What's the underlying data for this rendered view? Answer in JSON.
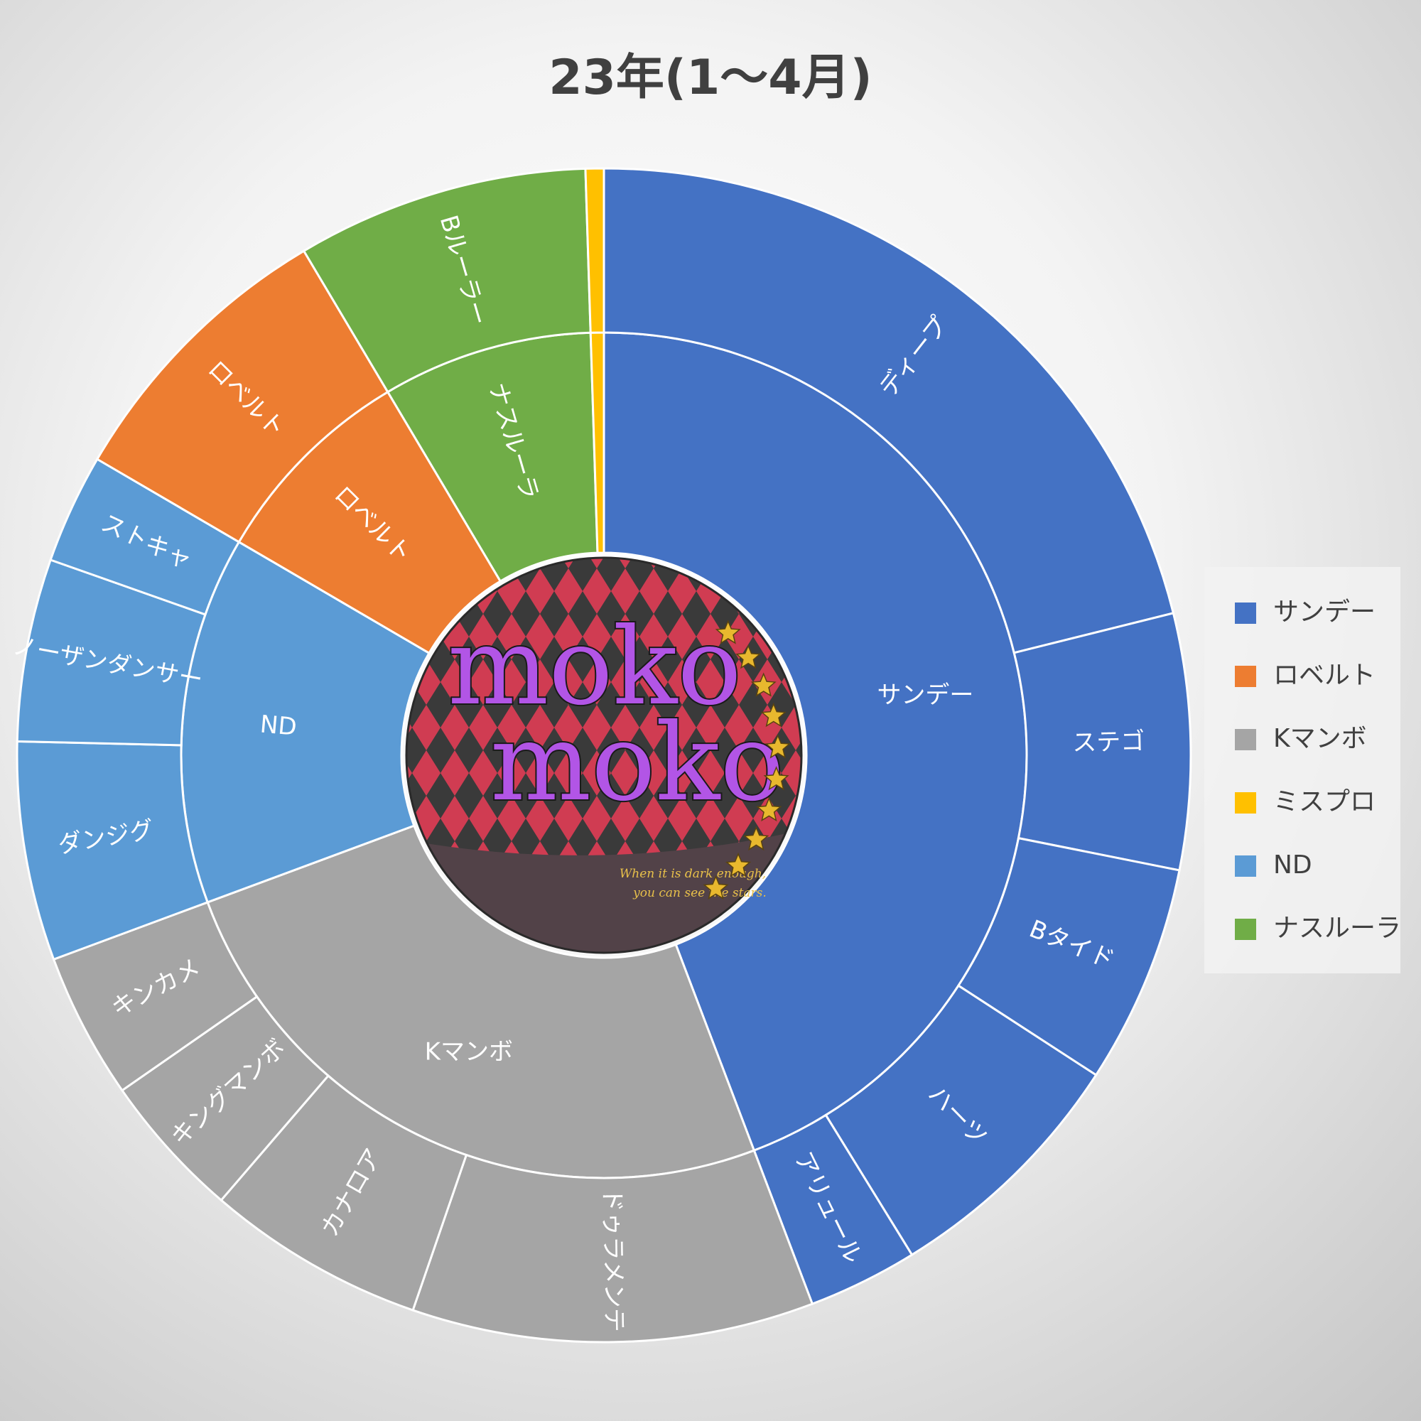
{
  "chart_data": {
    "type": "sunburst",
    "title": "23年(1～4月)",
    "colors": {
      "サンデー": "#4472C4",
      "ロベルト": "#ED7D31",
      "Kマンボ": "#A5A5A5",
      "ミスプロ": "#FFC000",
      "ND": "#5B9BD5",
      "ナスルーラ": "#70AD47"
    },
    "legend": {
      "position": "right",
      "entries": [
        "サンデー",
        "ロベルト",
        "Kマンボ",
        "ミスプロ",
        "ND",
        "ナスルーラ"
      ]
    },
    "groups": [
      {
        "name": "サンデー",
        "value": 44,
        "children": [
          {
            "name": "ディープ",
            "value": 21
          },
          {
            "name": "ステゴ",
            "value": 7
          },
          {
            "name": "Bタイド",
            "value": 6
          },
          {
            "name": "ハーツ",
            "value": 7
          },
          {
            "name": "アリュール",
            "value": 3
          }
        ]
      },
      {
        "name": "Kマンボ",
        "value": 25,
        "children": [
          {
            "name": "ドゥラメンテ",
            "value": 11
          },
          {
            "name": "カナロア",
            "value": 6
          },
          {
            "name": "キングマンボ",
            "value": 4
          },
          {
            "name": "キンカメ",
            "value": 4
          }
        ]
      },
      {
        "name": "ND",
        "value": 14,
        "children": [
          {
            "name": "ダンジグ",
            "value": 6
          },
          {
            "name": "ノーザンダンサー",
            "value": 5
          },
          {
            "name": "ストキャ",
            "value": 3
          }
        ]
      },
      {
        "name": "ロベルト",
        "value": 8,
        "children": [
          {
            "name": "ロベルト",
            "value": 8
          }
        ]
      },
      {
        "name": "ナスルーラ",
        "value": 8,
        "children": [
          {
            "name": "Bルーラー",
            "value": 8
          }
        ]
      },
      {
        "name": "ミスプロ",
        "value": 0.5,
        "children": [
          {
            "name": "",
            "value": 0.5
          }
        ]
      }
    ]
  },
  "center_logo": {
    "line1": "moko",
    "line2": "moko",
    "tagline1": "When it is dark enough,",
    "tagline2": "you can see the stars."
  }
}
